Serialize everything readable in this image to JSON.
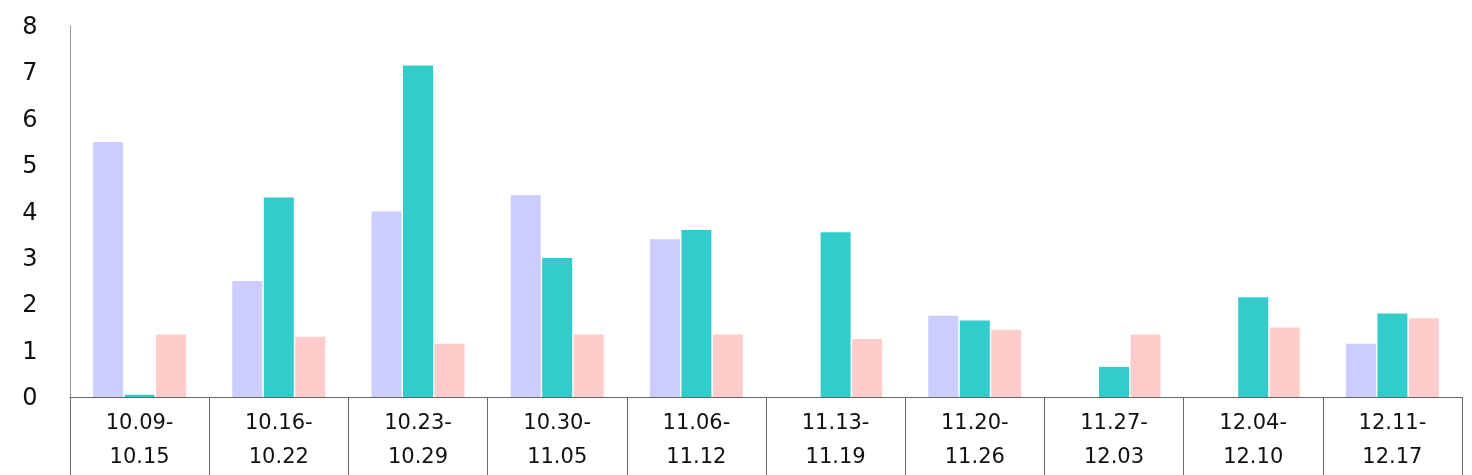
{
  "chart_data": {
    "type": "bar",
    "categories": [
      "10.09-\n10.15",
      "10.16-\n10.22",
      "10.23-\n10.29",
      "10.30-\n11.05",
      "11.06-\n11.12",
      "11.13-\n11.19",
      "11.20-\n11.26",
      "11.27-\n12.03",
      "12.04-\n12.10",
      "12.11-\n12.17"
    ],
    "series": [
      {
        "color": "#ccccff",
        "values": [
          5.5,
          2.5,
          4.0,
          4.35,
          3.4,
          null,
          1.75,
          null,
          null,
          1.15
        ]
      },
      {
        "color": "#33cccc",
        "values": [
          0.05,
          4.3,
          7.15,
          3.0,
          3.6,
          3.55,
          1.65,
          0.65,
          2.15,
          1.8
        ]
      },
      {
        "color": "#ffcccc",
        "values": [
          1.35,
          1.3,
          1.15,
          1.35,
          1.35,
          1.25,
          1.45,
          1.35,
          1.5,
          1.7
        ]
      }
    ],
    "ylim": [
      0,
      8
    ],
    "yticks": [
      0,
      1,
      2,
      3,
      4,
      5,
      6,
      7,
      8
    ],
    "grid": false
  }
}
